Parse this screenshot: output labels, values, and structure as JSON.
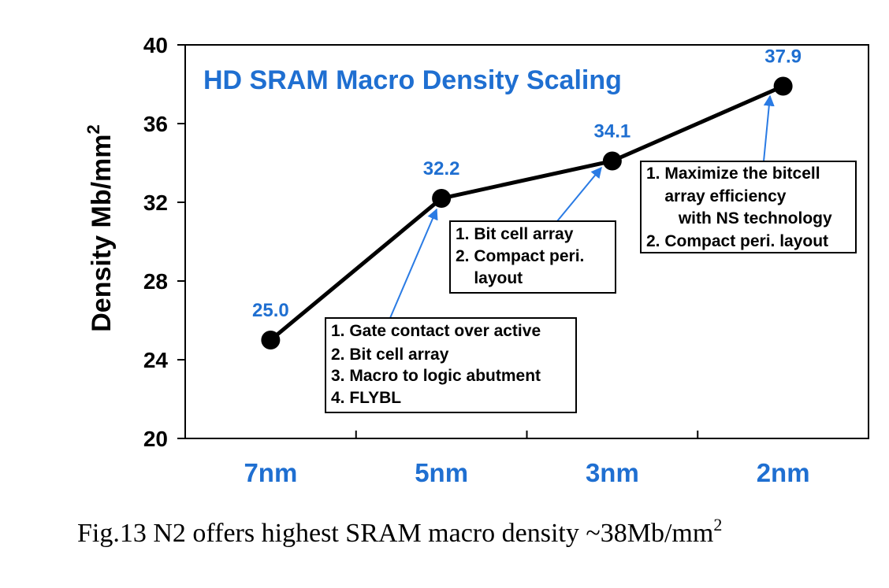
{
  "chart_data": {
    "type": "line",
    "title": "HD SRAM Macro Density Scaling",
    "ylabel_main": "Density Mb/mm",
    "ylabel_sup": "2",
    "ylim": [
      20,
      40
    ],
    "yticks": [
      20,
      24,
      28,
      32,
      36,
      40
    ],
    "categories": [
      "7nm",
      "5nm",
      "3nm",
      "2nm"
    ],
    "values": [
      25.0,
      32.2,
      34.1,
      37.9
    ],
    "data_labels": [
      "25.0",
      "32.2",
      "34.1",
      "37.9"
    ],
    "grid": false,
    "annotations": [
      {
        "target": "5nm",
        "lines": [
          "1. Gate contact over active",
          "2. Bit cell array",
          "3. Macro to logic abutment",
          "4. FLYBL"
        ]
      },
      {
        "target": "3nm",
        "lines": [
          "1. Bit cell array",
          "2. Compact peri.",
          "    layout"
        ]
      },
      {
        "target": "2nm",
        "lines": [
          "1. Maximize the bitcell",
          "    array efficiency",
          "       with NS technology",
          "2. Compact peri. layout"
        ]
      }
    ],
    "colors": {
      "line": "#000000",
      "label": "#1f6fd1",
      "title": "#1f6fd1",
      "arrow": "#2a7be4",
      "axis": "#000000"
    }
  },
  "caption": {
    "main": "Fig.13  N2 offers highest SRAM macro density ~38Mb/mm",
    "sup": "2"
  }
}
